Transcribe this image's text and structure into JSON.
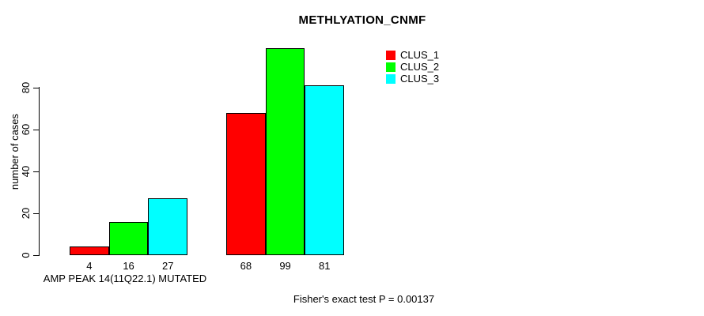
{
  "title": "METHLYATION_CNMF",
  "legend": {
    "items": [
      {
        "label": "CLUS_1",
        "color": "#ff0000"
      },
      {
        "label": "CLUS_2",
        "color": "#00ff00"
      },
      {
        "label": "CLUS_3",
        "color": "#00ffff"
      }
    ]
  },
  "footer": {
    "text": "Fisher's exact test P = 0.00137"
  },
  "chart_data": {
    "type": "bar",
    "title": "METHLYATION_CNMF",
    "ylabel": "number of cases",
    "xlabel": "AMP PEAK 14(11Q22.1) MUTATED",
    "yticks": [
      0,
      20,
      40,
      60,
      80
    ],
    "ylim": [
      0,
      99
    ],
    "grid": false,
    "legend_position": "top-right",
    "series": [
      {
        "name": "CLUS_1",
        "color": "#ff0000",
        "values": [
          4,
          68
        ]
      },
      {
        "name": "CLUS_2",
        "color": "#00ff00",
        "values": [
          16,
          99
        ]
      },
      {
        "name": "CLUS_3",
        "color": "#00ffff",
        "values": [
          27,
          81
        ]
      }
    ],
    "groups": [
      {
        "label": "AMP PEAK 14(11Q22.1) MUTATED",
        "values": [
          4,
          16,
          27
        ]
      },
      {
        "label": "",
        "values": [
          68,
          99,
          81
        ]
      }
    ],
    "annotation": "Fisher's exact test P = 0.00137"
  }
}
